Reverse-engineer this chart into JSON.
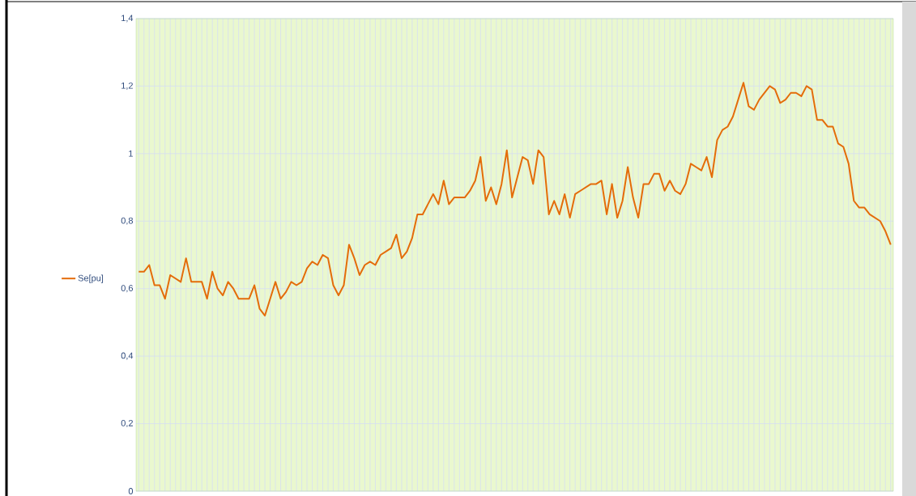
{
  "chart_data": {
    "type": "line",
    "categories": [
      null,
      null,
      null,
      null,
      null,
      null,
      null,
      null,
      null,
      null,
      null,
      null,
      null,
      null,
      null,
      null,
      null,
      null,
      null,
      null,
      null,
      null,
      null,
      null,
      null,
      null,
      null,
      null,
      null,
      null,
      null,
      null,
      null,
      null,
      null,
      null,
      null,
      null,
      null,
      null,
      null,
      null,
      null,
      null,
      null,
      null,
      null,
      null,
      null,
      null,
      null,
      null,
      null,
      null,
      null,
      null,
      null,
      null,
      null,
      null,
      null,
      null,
      null,
      null,
      null,
      null,
      null,
      null,
      null,
      null,
      null,
      null,
      null,
      null,
      null,
      null,
      null,
      null,
      null,
      null,
      null,
      null,
      null,
      null,
      null,
      null,
      null,
      null,
      null,
      null,
      null,
      null,
      null,
      null,
      null,
      null,
      null,
      null,
      null,
      null,
      null,
      null,
      null,
      null,
      null,
      null,
      null,
      null,
      null,
      null,
      null,
      null,
      null,
      null,
      null,
      null,
      null,
      null,
      null,
      null,
      null,
      null,
      null,
      null,
      null,
      null,
      null,
      null,
      null,
      null,
      null,
      null,
      null,
      null,
      null,
      null,
      null,
      null,
      null,
      null,
      null,
      null,
      null,
      null
    ],
    "series": [
      {
        "name": "Se[pu]",
        "color": "#e46c0a",
        "values": [
          0.65,
          0.65,
          0.67,
          0.61,
          0.61,
          0.57,
          0.64,
          0.63,
          0.62,
          0.69,
          0.62,
          0.62,
          0.62,
          0.57,
          0.65,
          0.6,
          0.58,
          0.62,
          0.6,
          0.57,
          0.57,
          0.57,
          0.61,
          0.54,
          0.52,
          0.57,
          0.62,
          0.57,
          0.59,
          0.62,
          0.61,
          0.62,
          0.66,
          0.68,
          0.67,
          0.7,
          0.69,
          0.61,
          0.58,
          0.61,
          0.73,
          0.69,
          0.64,
          0.67,
          0.68,
          0.67,
          0.7,
          0.71,
          0.72,
          0.76,
          0.69,
          0.71,
          0.75,
          0.82,
          0.82,
          0.85,
          0.88,
          0.85,
          0.92,
          0.85,
          0.87,
          0.87,
          0.87,
          0.89,
          0.92,
          0.99,
          0.86,
          0.9,
          0.85,
          0.91,
          1.01,
          0.87,
          0.93,
          0.99,
          0.98,
          0.91,
          1.01,
          0.99,
          0.82,
          0.86,
          0.82,
          0.88,
          0.81,
          0.88,
          0.89,
          0.9,
          0.91,
          0.91,
          0.92,
          0.82,
          0.91,
          0.81,
          0.86,
          0.96,
          0.87,
          0.81,
          0.91,
          0.91,
          0.94,
          0.94,
          0.89,
          0.92,
          0.89,
          0.88,
          0.91,
          0.97,
          0.96,
          0.95,
          0.99,
          0.93,
          1.04,
          1.07,
          1.08,
          1.11,
          1.16,
          1.21,
          1.14,
          1.13,
          1.16,
          1.18,
          1.2,
          1.19,
          1.15,
          1.16,
          1.18,
          1.18,
          1.17,
          1.2,
          1.19,
          1.1,
          1.1,
          1.08,
          1.08,
          1.03,
          1.02,
          0.97,
          0.86,
          0.84,
          0.84,
          0.82,
          0.81,
          0.8,
          0.77,
          0.73
        ]
      }
    ],
    "ylim": [
      0,
      1.4
    ],
    "yticks": [
      0,
      {
        "value": 0.2,
        "label": "0,2"
      },
      {
        "value": 0.4,
        "label": "0,4"
      },
      {
        "value": 0.6,
        "label": "0,6"
      },
      {
        "value": 0.8,
        "label": "0,8"
      },
      1,
      {
        "value": 1.2,
        "label": "1,2"
      },
      {
        "value": 1.4,
        "label": "1,4"
      }
    ],
    "grid": true,
    "legend": "left",
    "tick_labels": "y",
    "marker": "none",
    "line_style": "solid"
  }
}
